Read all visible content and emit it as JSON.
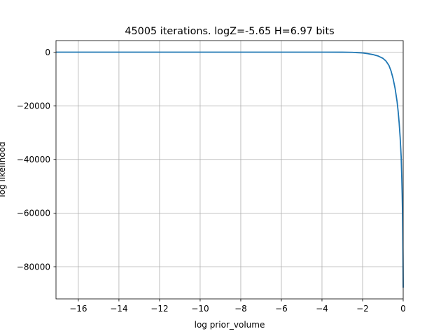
{
  "chart_data": {
    "type": "line",
    "title": "45005 iterations. logZ=-5.65 H=6.97 bits",
    "xlabel": "log prior_volume",
    "ylabel": "log likelihood",
    "xlim": [
      -17.1,
      0.0
    ],
    "ylim": [
      -92000,
      4300
    ],
    "grid": true,
    "xticks": [
      -16,
      -14,
      -12,
      -10,
      -8,
      -6,
      -4,
      -2,
      0
    ],
    "xtick_labels": [
      "−16",
      "−14",
      "−12",
      "−10",
      "−8",
      "−6",
      "−4",
      "−2",
      "0"
    ],
    "yticks": [
      0,
      -20000,
      -40000,
      -60000,
      -80000
    ],
    "ytick_labels": [
      "0",
      "−20000",
      "−40000",
      "−60000",
      "−80000"
    ],
    "series": [
      {
        "color": "#1f77b4",
        "x": [
          -17.1,
          -14,
          -10,
          -6,
          -4,
          -3,
          -2.5,
          -2.0,
          -1.75,
          -1.5,
          -1.25,
          -1.0,
          -0.85,
          -0.7,
          -0.6,
          -0.5,
          -0.4,
          -0.3,
          -0.25,
          -0.2,
          -0.15,
          -0.1,
          -0.07,
          -0.05,
          -0.03,
          -0.02,
          -0.01,
          0.0
        ],
        "y": [
          0,
          0,
          0,
          0,
          -5,
          -20,
          -80,
          -300,
          -560,
          -900,
          -1400,
          -2300,
          -3300,
          -5000,
          -7000,
          -9800,
          -13500,
          -18500,
          -22000,
          -26300,
          -31800,
          -39000,
          -46800,
          -53000,
          -61500,
          -67600,
          -76000,
          -87800
        ]
      }
    ]
  }
}
